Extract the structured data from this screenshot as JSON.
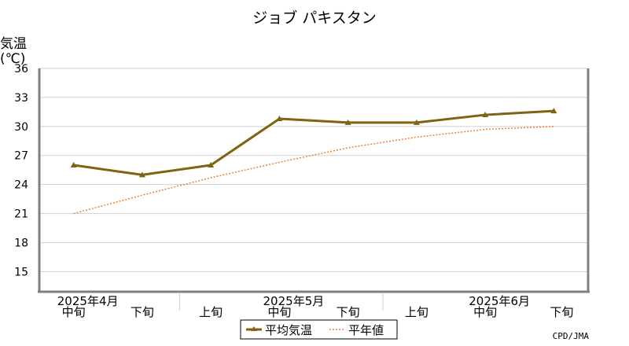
{
  "chart_data": {
    "type": "line",
    "title": "ジョブ パキスタン",
    "ylabel_line1": "気温",
    "ylabel_line2": "(℃)",
    "ylim": [
      13,
      36
    ],
    "yticks": [
      15,
      18,
      21,
      24,
      27,
      30,
      33,
      36
    ],
    "grid": true,
    "categories": [
      "中旬",
      "下旬",
      "上旬",
      "中旬",
      "下旬",
      "上旬",
      "中旬",
      "下旬"
    ],
    "month_labels": [
      {
        "label": "2025年4月",
        "at_category": 0
      },
      {
        "label": "2025年5月",
        "at_category": 3
      },
      {
        "label": "2025年6月",
        "at_category": 6
      }
    ],
    "series": [
      {
        "name": "平均気温",
        "color": "#7f6312",
        "style": "solid-triangle",
        "values": [
          26.0,
          25.0,
          26.0,
          30.8,
          30.4,
          30.4,
          31.2,
          31.6
        ]
      },
      {
        "name": "平年値",
        "color": "#f08030",
        "style": "dotted",
        "values": [
          21.0,
          22.9,
          24.7,
          26.3,
          27.8,
          28.9,
          29.7,
          30.0
        ]
      }
    ],
    "legend_position": "bottom-center",
    "source": "CPD/JMA"
  }
}
